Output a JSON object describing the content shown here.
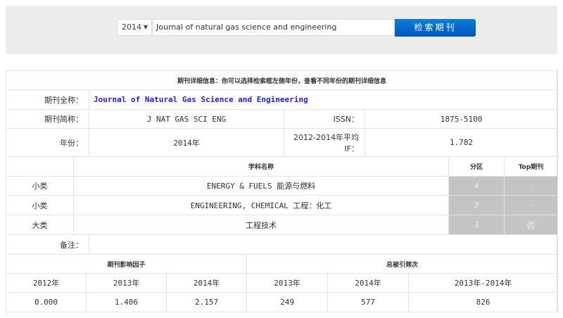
{
  "search": {
    "year": "2014",
    "query": "Journal of natural gas science and engineering",
    "button": "检索期刊"
  },
  "detail": {
    "header": "期刊详细信息：你可以选择检索框左侧年份，查看不同年份的期刊详细信息",
    "full_name_label": "期刊全称：",
    "full_name": "Journal of Natural Gas Science and Engineering",
    "abbr_label": "期刊简称：",
    "abbr": "J NAT GAS SCI ENG",
    "issn_label": "ISSN：",
    "issn": "1875-5100",
    "year_label": "年份：",
    "year": "2014年",
    "avg_if_label": "2012-2014年平均IF：",
    "avg_if": "1.782",
    "note_label": "备注："
  },
  "subjects": {
    "headers": [
      "学科名称",
      "分区",
      "Top期刊"
    ],
    "rows": [
      {
        "type": "小类",
        "name": "ENERGY & FUELS 能源与燃料",
        "zone": "4",
        "top": "-"
      },
      {
        "type": "小类",
        "name": "ENGINEERING, CHEMICAL 工程：化工",
        "zone": "3",
        "top": "-"
      },
      {
        "type": "大类",
        "name": "工程技术",
        "zone": "3",
        "top": "否"
      }
    ]
  },
  "metrics": {
    "if_header": "期刊影响因子",
    "cite_header": "总被引频次",
    "years": [
      "2012年",
      "2013年",
      "2014年",
      "2013年",
      "2014年",
      "2013年-2014年"
    ],
    "values": [
      "0.000",
      "1.406",
      "2.157",
      "249",
      "577",
      "826"
    ]
  }
}
